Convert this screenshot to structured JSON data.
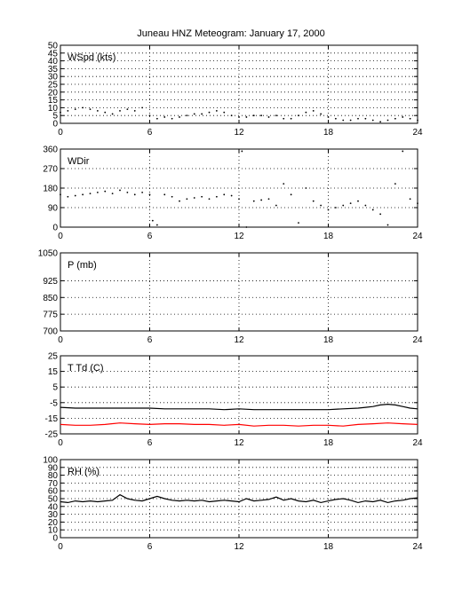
{
  "title": "Juneau HNZ Meteogram:    January 17, 2000",
  "chart_data": [
    {
      "type": "scatter",
      "ylabel": "WSpd (kts)",
      "xlim": [
        0,
        24
      ],
      "ylim": [
        0,
        50
      ],
      "xticks": [
        0,
        6,
        12,
        18,
        24
      ],
      "yticks": [
        0,
        5,
        10,
        15,
        20,
        25,
        30,
        35,
        40,
        45,
        50
      ],
      "grid": true,
      "series": [
        {
          "color": "#000000",
          "x": [
            0,
            0.5,
            1,
            1.5,
            2,
            2.5,
            3,
            3.5,
            4,
            4.5,
            5,
            5.5,
            6,
            6.5,
            7,
            7.5,
            8,
            8.5,
            9,
            9.5,
            10,
            10.5,
            11,
            11.5,
            12,
            12.5,
            13,
            13.5,
            14,
            14.5,
            15,
            15.5,
            16,
            16.5,
            17,
            17.5,
            18,
            18.5,
            19,
            19.5,
            20,
            20.5,
            21,
            21.5,
            22,
            22.5,
            23,
            23.5,
            24
          ],
          "y": [
            7,
            8,
            9,
            10,
            9,
            8,
            7,
            6,
            8,
            9,
            8,
            10,
            5,
            3,
            4,
            3,
            4,
            5,
            6,
            6,
            7,
            8,
            7,
            5,
            4,
            4,
            5,
            5,
            4,
            5,
            3,
            3,
            5,
            7,
            8,
            6,
            4,
            3,
            2,
            2,
            3,
            3,
            2,
            1,
            2,
            3,
            4,
            3,
            2
          ]
        }
      ]
    },
    {
      "type": "scatter",
      "ylabel": "WDir",
      "xlim": [
        0,
        24
      ],
      "ylim": [
        0,
        360
      ],
      "xticks": [
        0,
        6,
        12,
        18,
        24
      ],
      "yticks": [
        0,
        90,
        180,
        270,
        360
      ],
      "grid": true,
      "series": [
        {
          "color": "#000000",
          "x": [
            0,
            0.5,
            1,
            1.5,
            2,
            2.5,
            3,
            3.5,
            4,
            4.5,
            5,
            5.5,
            6,
            6.2,
            6.5,
            7,
            7.5,
            8,
            8.5,
            9,
            9.5,
            10,
            10.5,
            11,
            11.5,
            12,
            12.2,
            12.5,
            13,
            13.5,
            14,
            14.5,
            15,
            15.5,
            16,
            16.5,
            17,
            17.5,
            18,
            18.5,
            19,
            19.5,
            20,
            20.5,
            21,
            21.5,
            22,
            22.5,
            23,
            23.5,
            24
          ],
          "y": [
            150,
            140,
            145,
            150,
            155,
            160,
            165,
            155,
            170,
            160,
            150,
            160,
            150,
            30,
            10,
            150,
            140,
            120,
            130,
            135,
            140,
            130,
            140,
            150,
            145,
            130,
            350,
            0,
            120,
            125,
            130,
            100,
            200,
            150,
            20,
            180,
            120,
            100,
            80,
            90,
            100,
            110,
            120,
            100,
            80,
            60,
            10,
            200,
            350,
            130,
            110
          ]
        }
      ]
    },
    {
      "type": "line",
      "ylabel": "P (mb)",
      "xlim": [
        0,
        24
      ],
      "ylim": [
        700,
        1050
      ],
      "xticks": [
        0,
        6,
        12,
        18,
        24
      ],
      "yticks": [
        700,
        775,
        850,
        925,
        1050
      ],
      "ytick_labels": [
        "700",
        "775",
        "850",
        "925",
        "1050"
      ],
      "grid": true,
      "series": []
    },
    {
      "type": "line",
      "ylabel": "T Td (C)",
      "xlim": [
        0,
        24
      ],
      "ylim": [
        -25,
        25
      ],
      "xticks": [
        0,
        6,
        12,
        18,
        24
      ],
      "yticks": [
        -25,
        -15,
        -5,
        5,
        15,
        25
      ],
      "grid": true,
      "series": [
        {
          "color": "#000000",
          "x": [
            0,
            1,
            2,
            3,
            4,
            5,
            6,
            7,
            8,
            9,
            10,
            11,
            12,
            13,
            14,
            15,
            16,
            17,
            18,
            19,
            20,
            20.5,
            21,
            21.5,
            22,
            22.5,
            23,
            23.5,
            24
          ],
          "y": [
            -8,
            -8.5,
            -8.5,
            -8.5,
            -8.5,
            -8.5,
            -8.5,
            -9,
            -9,
            -9,
            -9,
            -9.5,
            -9,
            -9.5,
            -9.5,
            -9.5,
            -9.5,
            -9.5,
            -9.5,
            -9,
            -8.5,
            -8,
            -7.5,
            -6.5,
            -6,
            -6.5,
            -7.5,
            -8.5,
            -9
          ]
        },
        {
          "color": "#ff0000",
          "x": [
            0,
            1,
            2,
            3,
            4,
            5,
            6,
            7,
            8,
            9,
            10,
            11,
            12,
            13,
            14,
            15,
            16,
            17,
            18,
            19,
            20,
            21,
            22,
            23,
            24
          ],
          "y": [
            -19,
            -19.5,
            -19.5,
            -19,
            -18,
            -18.5,
            -19,
            -18.5,
            -18.5,
            -19,
            -19,
            -19.5,
            -19,
            -20,
            -19.5,
            -19.5,
            -20,
            -19.5,
            -19.5,
            -20,
            -19,
            -18.5,
            -18,
            -18.5,
            -19
          ]
        }
      ]
    },
    {
      "type": "line",
      "ylabel": "RH (%)",
      "xlim": [
        0,
        24
      ],
      "ylim": [
        0,
        100
      ],
      "xticks": [
        0,
        6,
        12,
        18,
        24
      ],
      "yticks": [
        0,
        10,
        20,
        30,
        40,
        50,
        60,
        70,
        80,
        90,
        100
      ],
      "grid": true,
      "series": [
        {
          "color": "#000000",
          "x": [
            0,
            0.5,
            1,
            1.5,
            2,
            2.5,
            3,
            3.5,
            4,
            4.5,
            5,
            5.5,
            6,
            6.5,
            7,
            7.5,
            8,
            8.5,
            9,
            9.5,
            10,
            10.5,
            11,
            11.5,
            12,
            12.5,
            13,
            13.5,
            14,
            14.5,
            15,
            15.5,
            16,
            16.5,
            17,
            17.5,
            18,
            18.5,
            19,
            19.5,
            20,
            20.5,
            21,
            21.5,
            22,
            22.5,
            23,
            23.5,
            24
          ],
          "y": [
            46,
            45,
            47,
            46,
            47,
            46,
            47,
            48,
            55,
            50,
            48,
            47,
            50,
            53,
            50,
            48,
            47,
            48,
            47,
            48,
            46,
            47,
            48,
            47,
            46,
            50,
            47,
            48,
            49,
            52,
            48,
            50,
            47,
            46,
            48,
            45,
            47,
            49,
            50,
            48,
            45,
            47,
            46,
            48,
            45,
            47,
            48,
            50,
            51
          ]
        }
      ]
    }
  ]
}
